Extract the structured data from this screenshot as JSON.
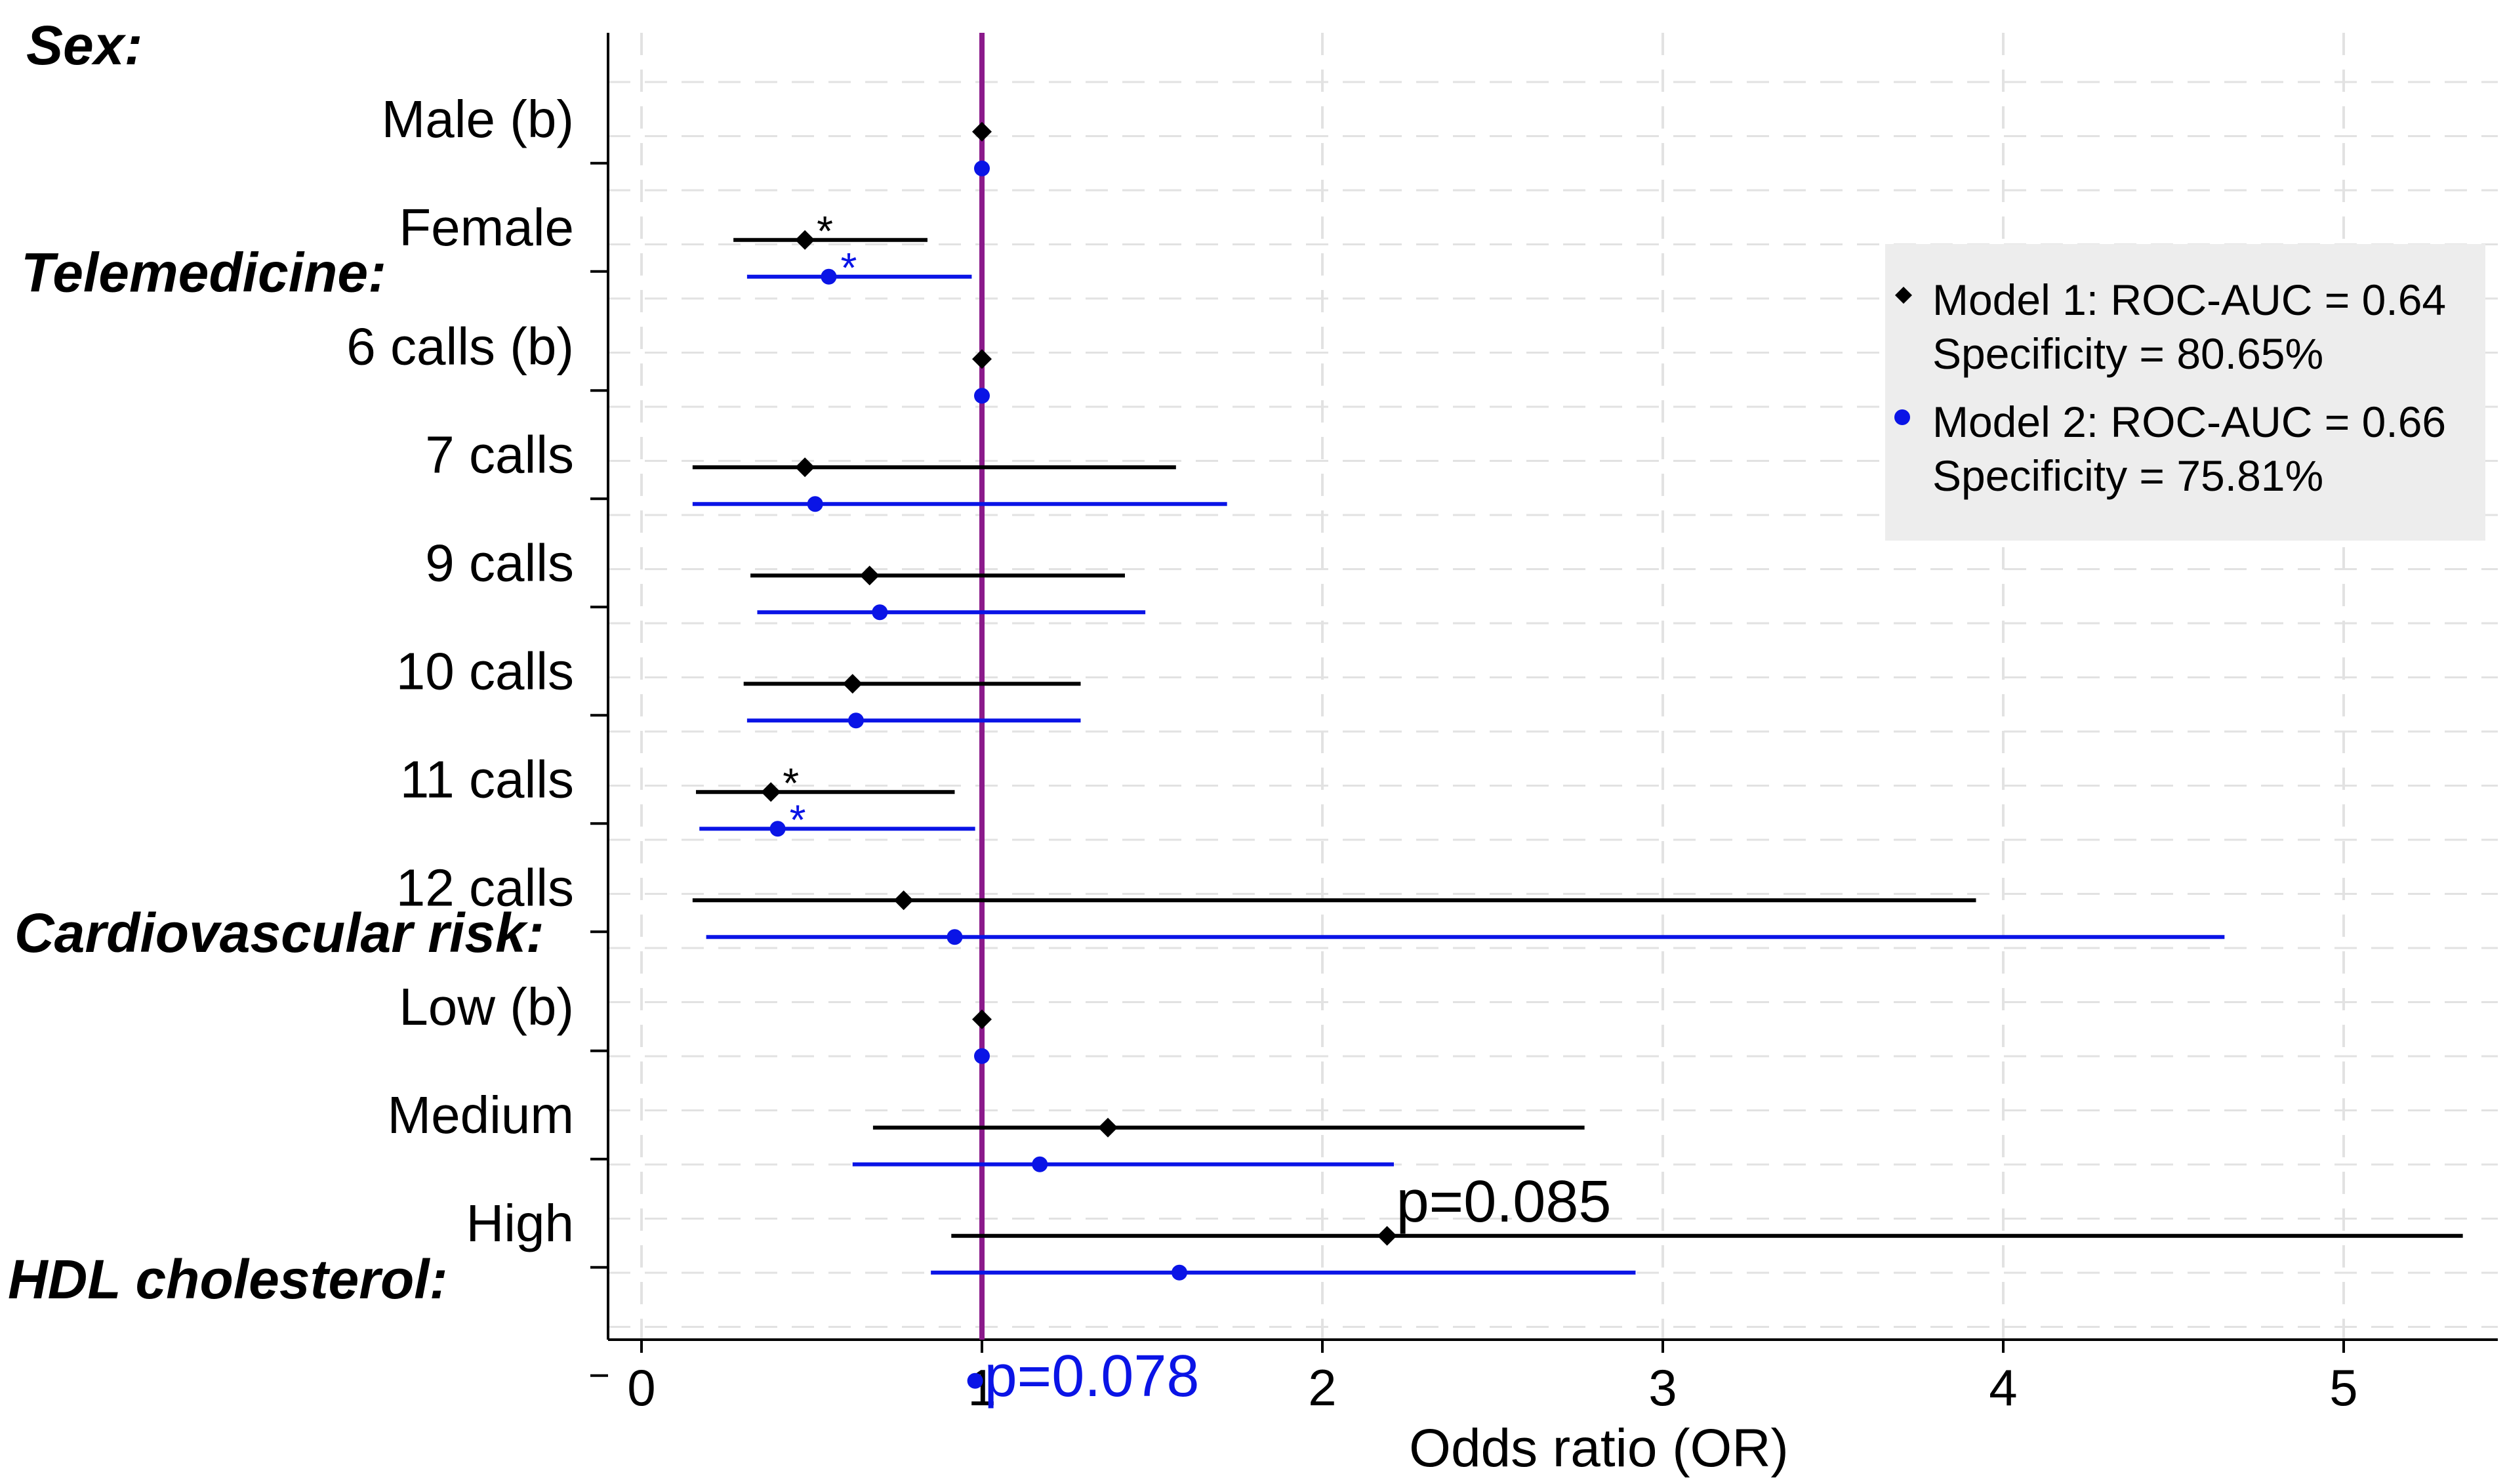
{
  "chart_data": {
    "type": "forest",
    "xlabel": "Odds ratio (OR)",
    "xlim": [
      -0.05,
      5.35
    ],
    "x_ticks": [
      0,
      1,
      2,
      3,
      4,
      5
    ],
    "x_tick_labels": [
      "0",
      "1",
      "2",
      "3",
      "4",
      "5"
    ],
    "reference_line": 1,
    "colors": {
      "model1": "#000000",
      "model2": "#0a14e6",
      "reference": "#8b1a8b",
      "legend_bg": "#ededed",
      "grid": "#e2e2e2"
    },
    "groups": [
      {
        "header": "Sex:",
        "slot": 0
      },
      {
        "header": "Telemedicine:",
        "slot": 2.1
      },
      {
        "header": "Cardiovascular risk:",
        "slot": 8.2
      },
      {
        "header": "HDL cholesterol:",
        "slot": 11.4
      }
    ],
    "rows": [
      {
        "label": "Male (b)",
        "slot": 0.75,
        "m1": {
          "or": 1.0
        },
        "m2": {
          "or": 1.0
        }
      },
      {
        "label": "Female",
        "slot": 1.75,
        "m1": {
          "or": 0.48,
          "lo": 0.27,
          "hi": 0.84,
          "mark": "*"
        },
        "m2": {
          "or": 0.55,
          "lo": 0.31,
          "hi": 0.97,
          "mark": "*"
        }
      },
      {
        "label": "6 calls (b)",
        "slot": 2.85,
        "m1": {
          "or": 1.0
        },
        "m2": {
          "or": 1.0
        }
      },
      {
        "label": "7 calls",
        "slot": 3.85,
        "m1": {
          "or": 0.48,
          "lo": 0.15,
          "hi": 1.57
        },
        "m2": {
          "or": 0.51,
          "lo": 0.15,
          "hi": 1.72
        }
      },
      {
        "label": "9 calls",
        "slot": 4.85,
        "m1": {
          "or": 0.67,
          "lo": 0.32,
          "hi": 1.42
        },
        "m2": {
          "or": 0.7,
          "lo": 0.34,
          "hi": 1.48
        }
      },
      {
        "label": "10 calls",
        "slot": 5.85,
        "m1": {
          "or": 0.62,
          "lo": 0.3,
          "hi": 1.29
        },
        "m2": {
          "or": 0.63,
          "lo": 0.31,
          "hi": 1.29
        }
      },
      {
        "label": "11 calls",
        "slot": 6.85,
        "m1": {
          "or": 0.38,
          "lo": 0.16,
          "hi": 0.92,
          "mark": "*"
        },
        "m2": {
          "or": 0.4,
          "lo": 0.17,
          "hi": 0.98,
          "mark": "*"
        }
      },
      {
        "label": "12 calls",
        "slot": 7.85,
        "m1": {
          "or": 0.77,
          "lo": 0.15,
          "hi": 3.92
        },
        "m2": {
          "or": 0.92,
          "lo": 0.19,
          "hi": 4.65
        }
      },
      {
        "label": "Low (b)",
        "slot": 8.95,
        "m1": {
          "or": 1.0
        },
        "m2": {
          "or": 1.0
        }
      },
      {
        "label": "Medium",
        "slot": 9.95,
        "m1": {
          "or": 1.37,
          "lo": 0.68,
          "hi": 2.77
        },
        "m2": {
          "or": 1.17,
          "lo": 0.62,
          "hi": 2.21
        }
      },
      {
        "label": "High",
        "slot": 10.95,
        "m1": {
          "or": 2.19,
          "lo": 0.91,
          "hi": 5.35,
          "mark": "p=0.085"
        },
        "m2": {
          "or": 1.58,
          "lo": 0.85,
          "hi": 2.92
        }
      },
      {
        "label": "",
        "slot": 11.95,
        "m1": null,
        "m2": {
          "or": 0.98,
          "lo": 0.97,
          "hi": 0.99,
          "mark": "p=0.078"
        }
      }
    ],
    "legend": {
      "position": "top-right",
      "entries": [
        {
          "series": "model1",
          "marker": "diamond",
          "line1": "Model 1: ROC-AUC = 0.64",
          "line2": "Specificity = 80.65%"
        },
        {
          "series": "model2",
          "marker": "dot",
          "line1": "Model 2: ROC-AUC = 0.66",
          "line2": "Specificity = 75.81%"
        }
      ]
    }
  }
}
